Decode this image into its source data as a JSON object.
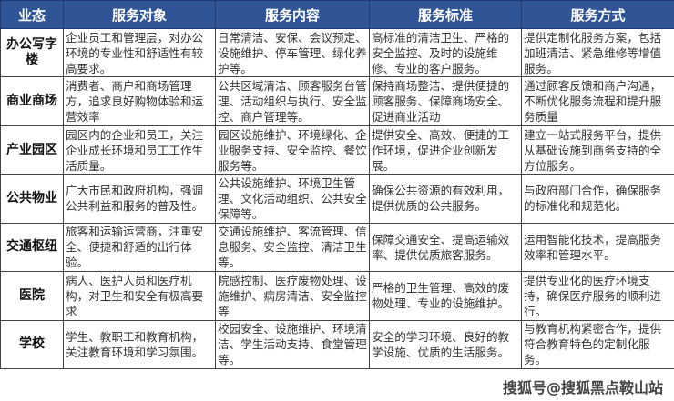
{
  "headers": [
    "业态",
    "服务对象",
    "服务内容",
    "服务标准",
    "服务方式"
  ],
  "rows": [
    {
      "type": "办公写字楼",
      "target": "企业员工和管理层，对办公环境的专业性和舒适性有较高要求。",
      "content": "日常清洁、安保、会议预定、设施维护、停车管理、绿化养护等。",
      "standard": "高标准的清洁卫生、严格的安全监控、及时的设施维修、专业的客户服务。",
      "method": "提供定制化服务方案，包括加班清洁、紧急维修等增值服务。"
    },
    {
      "type": "商业商场",
      "target": "消费者、商户和商场管理方，追求良好购物体验和运营效率",
      "content": "公共区域清洁、顾客服务台管理、活动组织与执行、安全监控、商户管理等。",
      "standard": "保持商场整洁、提供便捷的顾客服务、保障商场安全、促进商业活动",
      "method": "通过顾客反馈和商户沟通，不断优化服务流程和提升服务质量"
    },
    {
      "type": "产业园区",
      "target": "园区内的企业和员工，关注企业成长环境和员工工作生活质量。",
      "content": "园区设施维护、环境绿化、企业服务支持、安全监控、餐饮服务等。",
      "standard": "提供安全、高效、便捷的工作环境，促进企业创新发展。",
      "method": "建立一站式服务平台，提供从基础设施到商务支持的全方位服务。"
    },
    {
      "type": "公共物业",
      "target": "广大市民和政府机构，强调公共利益和服务的普及性。",
      "content": "公共设施维护、环境卫生管理、文化活动组织、公共安全保障等。",
      "standard": "确保公共资源的有效利用，提供优质的公共服务。",
      "method": "与政府部门合作，确保服务的标准化和规范化。"
    },
    {
      "type": "交通枢纽",
      "target": "旅客和运输运营商，注重安全、便捷和舒适的出行体验。",
      "content": "交通设施维护、客流管理、信息服务、安全监控、清洁卫生等。",
      "standard": "保障交通安全、提高运输效率、提供优质旅客服务。",
      "method": "运用智能化技术，提高服务效率和管理水平。"
    },
    {
      "type": "医院",
      "target": "病人、医护人员和医疗机构，对卫生和安全有极高要求",
      "content": "院感控制、医疗废物处理、设施维护、病房清洁、安全监控等",
      "standard": "严格的卫生管理、高效的废物处理、专业的设施维护。",
      "method": "提供专业化的医疗环境支持，确保医疗服务的顺利进行。"
    },
    {
      "type": "学校",
      "target": "学生、教职工和教育机构，关注教育环境和学习氛围。",
      "content": "校园安全、设施维护、环境清洁、学生活动支持、食堂管理等。",
      "standard": "安全的学习环境、良好的教学设施、优质的生活服务。",
      "method": "与教育机构紧密合作，提供符合教育特色的定制化服务。"
    }
  ],
  "watermark": "搜狐号@搜狐黑点鞍山站",
  "colors": {
    "header_bg": "#2f5597",
    "header_text": "#ffffff"
  }
}
